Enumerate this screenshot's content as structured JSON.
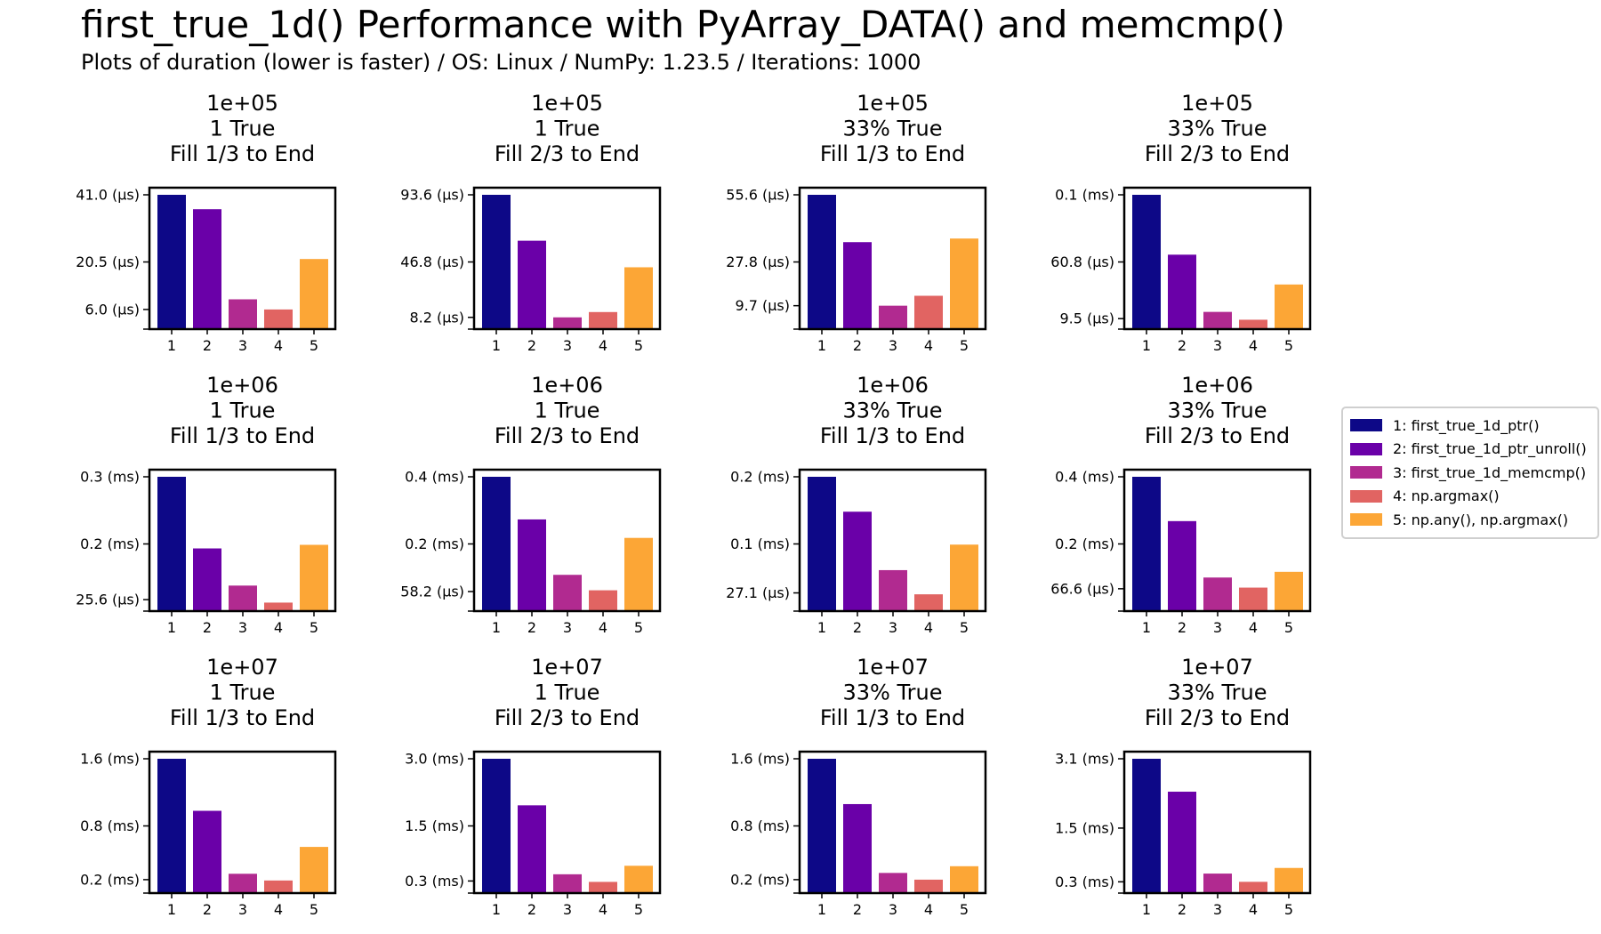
{
  "title": "first_true_1d() Performance with PyArray_DATA() and memcmp()",
  "subtitle": "Plots of duration (lower is faster) / OS: Linux / NumPy: 1.23.5 / Iterations: 1000",
  "colors": [
    "#0d0887",
    "#6a00a8",
    "#b12a90",
    "#e16462",
    "#fca636"
  ],
  "legend": {
    "placement": "right",
    "items": [
      {
        "label": "1: first_true_1d_ptr()",
        "color": "#0d0887"
      },
      {
        "label": "2: first_true_1d_ptr_unroll()",
        "color": "#6a00a8"
      },
      {
        "label": "3: first_true_1d_memcmp()",
        "color": "#b12a90"
      },
      {
        "label": "4: np.argmax()",
        "color": "#e16462"
      },
      {
        "label": "5: np.any(), np.argmax()",
        "color": "#fca636"
      }
    ]
  },
  "chart_data": [
    {
      "type": "bar",
      "title": [
        "1e+05",
        "1 True",
        "Fill 1/3 to End"
      ],
      "categories": [
        "1",
        "2",
        "3",
        "4",
        "5"
      ],
      "values": [
        41.0,
        36.6,
        9.1,
        6.0,
        21.4
      ],
      "ylim": [
        0,
        41.0
      ],
      "yticks": [
        {
          "v": 41.0,
          "label": "41.0 (µs)"
        },
        {
          "v": 20.5,
          "label": "20.5 (µs)"
        },
        {
          "v": 6.0,
          "label": "6.0 (µs)"
        }
      ],
      "ylabel_unit": "µs"
    },
    {
      "type": "bar",
      "title": [
        "1e+05",
        "1 True",
        "Fill 2/3 to End"
      ],
      "categories": [
        "1",
        "2",
        "3",
        "4",
        "5"
      ],
      "values": [
        93.6,
        61.6,
        8.2,
        11.9,
        43.1
      ],
      "ylim": [
        0,
        93.6
      ],
      "yticks": [
        {
          "v": 93.6,
          "label": "93.6 (µs)"
        },
        {
          "v": 46.8,
          "label": "46.8 (µs)"
        },
        {
          "v": 8.2,
          "label": "8.2 (µs)"
        }
      ],
      "ylabel_unit": "µs"
    },
    {
      "type": "bar",
      "title": [
        "1e+05",
        "33% True",
        "Fill 1/3 to End"
      ],
      "categories": [
        "1",
        "2",
        "3",
        "4",
        "5"
      ],
      "values": [
        55.6,
        36.0,
        9.7,
        13.8,
        37.5
      ],
      "ylim": [
        0,
        55.6
      ],
      "yticks": [
        {
          "v": 55.6,
          "label": "55.6 (µs)"
        },
        {
          "v": 27.8,
          "label": "27.8 (µs)"
        },
        {
          "v": 9.7,
          "label": "9.7 (µs)"
        }
      ],
      "ylabel_unit": "µs"
    },
    {
      "type": "bar",
      "title": [
        "1e+05",
        "33% True",
        "Fill 2/3 to End"
      ],
      "categories": [
        "1",
        "2",
        "3",
        "4",
        "5"
      ],
      "values": [
        121.6,
        67.4,
        15.6,
        8.5,
        40.4
      ],
      "ylim": [
        0,
        121.6
      ],
      "yticks": [
        {
          "v": 121.6,
          "label": "0.1 (ms)"
        },
        {
          "v": 60.8,
          "label": "60.8 (µs)"
        },
        {
          "v": 9.5,
          "label": "9.5 (µs)"
        }
      ],
      "ylabel_unit": "µs"
    },
    {
      "type": "bar",
      "title": [
        "1e+06",
        "1 True",
        "Fill 1/3 to End"
      ],
      "categories": [
        "1",
        "2",
        "3",
        "4",
        "5"
      ],
      "values": [
        0.3,
        0.14,
        0.057,
        0.019,
        0.148
      ],
      "ylim": [
        0,
        0.3
      ],
      "yticks": [
        {
          "v": 0.3,
          "label": "0.3 (ms)"
        },
        {
          "v": 0.15,
          "label": "0.2 (ms)"
        },
        {
          "v": 0.0256,
          "label": "25.6 (µs)"
        }
      ],
      "ylabel_unit": "ms"
    },
    {
      "type": "bar",
      "title": [
        "1e+06",
        "1 True",
        "Fill 2/3 to End"
      ],
      "categories": [
        "1",
        "2",
        "3",
        "4",
        "5"
      ],
      "values": [
        0.4,
        0.273,
        0.108,
        0.062,
        0.218
      ],
      "ylim": [
        0,
        0.4
      ],
      "yticks": [
        {
          "v": 0.4,
          "label": "0.4 (ms)"
        },
        {
          "v": 0.2,
          "label": "0.2 (ms)"
        },
        {
          "v": 0.0582,
          "label": "58.2 (µs)"
        }
      ],
      "ylabel_unit": "ms"
    },
    {
      "type": "bar",
      "title": [
        "1e+06",
        "33% True",
        "Fill 1/3 to End"
      ],
      "categories": [
        "1",
        "2",
        "3",
        "4",
        "5"
      ],
      "values": [
        0.2,
        0.148,
        0.061,
        0.025,
        0.099
      ],
      "ylim": [
        0,
        0.2
      ],
      "yticks": [
        {
          "v": 0.2,
          "label": "0.2 (ms)"
        },
        {
          "v": 0.1,
          "label": "0.1 (ms)"
        },
        {
          "v": 0.0271,
          "label": "27.1 (µs)"
        }
      ],
      "ylabel_unit": "ms"
    },
    {
      "type": "bar",
      "title": [
        "1e+06",
        "33% True",
        "Fill 2/3 to End"
      ],
      "categories": [
        "1",
        "2",
        "3",
        "4",
        "5"
      ],
      "values": [
        0.4,
        0.268,
        0.1,
        0.07,
        0.117
      ],
      "ylim": [
        0,
        0.4
      ],
      "yticks": [
        {
          "v": 0.4,
          "label": "0.4 (ms)"
        },
        {
          "v": 0.2,
          "label": "0.2 (ms)"
        },
        {
          "v": 0.0666,
          "label": "66.6 (µs)"
        }
      ],
      "ylabel_unit": "ms"
    },
    {
      "type": "bar",
      "title": [
        "1e+07",
        "1 True",
        "Fill 1/3 to End"
      ],
      "categories": [
        "1",
        "2",
        "3",
        "4",
        "5"
      ],
      "values": [
        1.6,
        0.98,
        0.23,
        0.15,
        0.55
      ],
      "ylim": [
        0,
        1.6
      ],
      "yticks": [
        {
          "v": 1.6,
          "label": "1.6 (ms)"
        },
        {
          "v": 0.8,
          "label": "0.8 (ms)"
        },
        {
          "v": 0.16,
          "label": "0.2 (ms)"
        }
      ],
      "ylabel_unit": "ms"
    },
    {
      "type": "bar",
      "title": [
        "1e+07",
        "1 True",
        "Fill 2/3 to End"
      ],
      "categories": [
        "1",
        "2",
        "3",
        "4",
        "5"
      ],
      "values": [
        3.0,
        1.96,
        0.42,
        0.25,
        0.61
      ],
      "ylim": [
        0,
        3.0
      ],
      "yticks": [
        {
          "v": 3.0,
          "label": "3.0 (ms)"
        },
        {
          "v": 1.5,
          "label": "1.5 (ms)"
        },
        {
          "v": 0.27,
          "label": "0.3 (ms)"
        }
      ],
      "ylabel_unit": "ms"
    },
    {
      "type": "bar",
      "title": [
        "1e+07",
        "33% True",
        "Fill 1/3 to End"
      ],
      "categories": [
        "1",
        "2",
        "3",
        "4",
        "5"
      ],
      "values": [
        1.6,
        1.06,
        0.24,
        0.16,
        0.32
      ],
      "ylim": [
        0,
        1.6
      ],
      "yticks": [
        {
          "v": 1.6,
          "label": "1.6 (ms)"
        },
        {
          "v": 0.8,
          "label": "0.8 (ms)"
        },
        {
          "v": 0.16,
          "label": "0.2 (ms)"
        }
      ],
      "ylabel_unit": "ms"
    },
    {
      "type": "bar",
      "title": [
        "1e+07",
        "33% True",
        "Fill 2/3 to End"
      ],
      "categories": [
        "1",
        "2",
        "3",
        "4",
        "5"
      ],
      "values": [
        3.1,
        2.34,
        0.45,
        0.26,
        0.58
      ],
      "ylim": [
        0,
        3.1
      ],
      "yticks": [
        {
          "v": 3.1,
          "label": "3.1 (ms)"
        },
        {
          "v": 1.5,
          "label": "1.5 (ms)"
        },
        {
          "v": 0.26,
          "label": "0.3 (ms)"
        }
      ],
      "ylabel_unit": "ms"
    }
  ]
}
